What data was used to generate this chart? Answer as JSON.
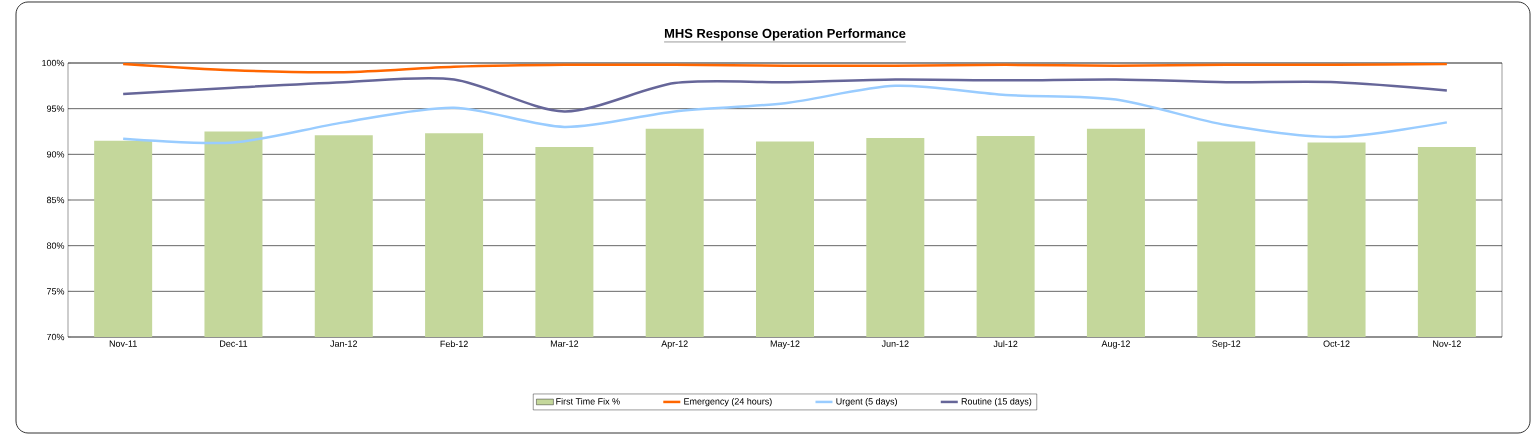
{
  "chart_data": {
    "type": "bar",
    "title": "MHS Response Operation Performance",
    "categories": [
      "Nov-11",
      "Dec-11",
      "Jan-12",
      "Feb-12",
      "Mar-12",
      "Apr-12",
      "May-12",
      "Jun-12",
      "Jul-12",
      "Aug-12",
      "Sep-12",
      "Oct-12",
      "Nov-12"
    ],
    "series": [
      {
        "name": "First Time Fix %",
        "color": "#c4d79b",
        "values": [
          91.5,
          92.5,
          92.1,
          92.3,
          90.8,
          92.8,
          91.4,
          91.8,
          92.0,
          92.8,
          91.4,
          91.3,
          90.8
        ]
      },
      {
        "name": "Emergency (24 hours)",
        "type": "line",
        "color": "#ff6600",
        "values": [
          99.9,
          99.2,
          99.0,
          99.6,
          99.8,
          99.8,
          99.7,
          99.7,
          99.8,
          99.7,
          99.8,
          99.8,
          99.9
        ]
      },
      {
        "name": "Urgent (5 days)",
        "type": "line",
        "color": "#99ccff",
        "values": [
          91.7,
          91.3,
          93.5,
          95.1,
          93.0,
          94.7,
          95.6,
          97.5,
          96.5,
          96.0,
          93.2,
          91.9,
          93.5
        ]
      },
      {
        "name": "Routine (15 days)",
        "type": "line",
        "color": "#666699",
        "values": [
          96.6,
          97.3,
          97.9,
          98.2,
          94.7,
          97.8,
          97.9,
          98.2,
          98.1,
          98.2,
          97.9,
          97.9,
          97.0
        ]
      }
    ],
    "ylim": [
      70,
      100
    ],
    "yticks": [
      {
        "value": 70,
        "label": "70%"
      },
      {
        "value": 75,
        "label": "75%"
      },
      {
        "value": 80,
        "label": "80%"
      },
      {
        "value": 85,
        "label": "85%"
      },
      {
        "value": 90,
        "label": "90%"
      },
      {
        "value": 95,
        "label": "95%"
      },
      {
        "value": 100,
        "label": "100%"
      }
    ],
    "grid": "y",
    "legend": "bottom"
  }
}
